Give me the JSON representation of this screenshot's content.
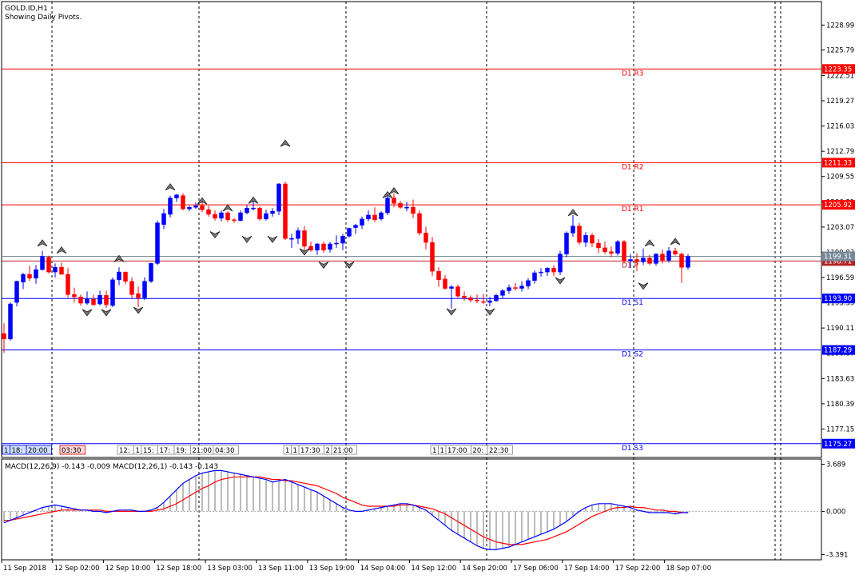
{
  "header": {
    "symbol": "GOLD.ID,H1",
    "subtitle": "Showing Daily Pivots."
  },
  "colors": {
    "bull": "#0000ff",
    "bear": "#ff0000",
    "resistance": "#ff0000",
    "support": "#0000ff",
    "pivot": "#b22222",
    "macd_main": "#0000ff",
    "macd_signal": "#ff0000",
    "grid": "#000000"
  },
  "chart_data": [
    {
      "type": "candlestick",
      "title": "GOLD.ID,H1",
      "ylim": [
        1173.5,
        1232.0
      ],
      "y_ticks": [
        1228.99,
        1225.79,
        1222.51,
        1219.27,
        1216.03,
        1212.79,
        1209.55,
        1206.31,
        1203.07,
        1199.83,
        1196.59,
        1193.35,
        1190.11,
        1186.87,
        1183.63,
        1180.39,
        1177.15
      ],
      "x_tick_labels": [
        "11 Sep 2018",
        "12 Sep 02:00",
        "12 Sep 10:00",
        "12 Sep 18:00",
        "13 Sep 03:00",
        "13 Sep 11:00",
        "13 Sep 19:00",
        "14 Sep 04:00",
        "14 Sep 12:00",
        "14 Sep 20:00",
        "17 Sep 06:00",
        "17 Sep 14:00",
        "17 Sep 22:00",
        "18 Sep 07:00"
      ],
      "day_separators": [
        7,
        30,
        53,
        75,
        98,
        121
      ],
      "pivot_levels": [
        {
          "name": "R3",
          "label": "D1 R3",
          "value": 1223.35,
          "tag": "1223.35",
          "kind": "resistance"
        },
        {
          "name": "R2",
          "label": "D1 R2",
          "value": 1211.33,
          "tag": "1211.33",
          "kind": "resistance"
        },
        {
          "name": "R1",
          "label": "D1 R1",
          "value": 1205.92,
          "tag": "1205.92",
          "kind": "resistance"
        },
        {
          "name": "P",
          "label": "D1 P",
          "value": 1198.71,
          "tag": "1198.71",
          "kind": "pivot"
        },
        {
          "name": "S1",
          "label": "D1 S1",
          "value": 1193.9,
          "tag": "1193.90",
          "kind": "support"
        },
        {
          "name": "S2",
          "label": "D1 S2",
          "value": 1187.29,
          "tag": "1187.29",
          "kind": "support"
        },
        {
          "name": "S3",
          "label": "D1 S3",
          "value": 1175.27,
          "tag": "1175.27",
          "kind": "support"
        }
      ],
      "bid_price": 1199.31,
      "bid_tag": "1199.31",
      "time_tag_groups": [
        {
          "slot": 0,
          "labels": [
            "1",
            "18:",
            "20:00"
          ],
          "style": "blue"
        },
        {
          "slot": 9,
          "labels": [
            "03:30"
          ],
          "style": "red"
        },
        {
          "slot": 18,
          "labels": [
            "12:",
            "1",
            "15:",
            "17:",
            "19:",
            "21:00"
          ],
          "style": "gray"
        },
        {
          "slot": 33,
          "labels": [
            "04:30"
          ],
          "style": "gray"
        },
        {
          "slot": 44,
          "labels": [
            "1",
            "1",
            "17:30",
            "2",
            "21:00"
          ],
          "style": "gray"
        },
        {
          "slot": 67,
          "labels": [
            "1",
            "1",
            "17:00",
            "20:",
            "22:30"
          ],
          "style": "gray"
        }
      ],
      "fractals_up": [
        [
          6,
          1200.5
        ],
        [
          9,
          1199.6
        ],
        [
          18,
          1198.5
        ],
        [
          26,
          1207.7
        ],
        [
          31,
          1205.9
        ],
        [
          35,
          1205.0
        ],
        [
          39,
          1206.0
        ],
        [
          44,
          1213.3
        ],
        [
          60,
          1206.7
        ],
        [
          61,
          1207.2
        ],
        [
          89,
          1204.4
        ],
        [
          101,
          1200.5
        ],
        [
          105,
          1200.7
        ]
      ],
      "fractals_down": [
        [
          13,
          1192.6
        ],
        [
          16,
          1192.6
        ],
        [
          21,
          1192.9
        ],
        [
          33,
          1202.6
        ],
        [
          38,
          1202.0
        ],
        [
          42,
          1202.0
        ],
        [
          47,
          1200.4
        ],
        [
          50,
          1198.7
        ],
        [
          54,
          1198.7
        ],
        [
          70,
          1192.7
        ],
        [
          76,
          1192.7
        ],
        [
          87,
          1196.7
        ],
        [
          100,
          1196.0
        ]
      ],
      "candles": [
        [
          1189.4,
          1190.7,
          1186.9,
          1188.7
        ],
        [
          1188.7,
          1193.4,
          1188.5,
          1193.2
        ],
        [
          1193.4,
          1196.2,
          1192.9,
          1196.1
        ],
        [
          1196.0,
          1197.2,
          1195.1,
          1197.0
        ],
        [
          1197.0,
          1198.1,
          1196.1,
          1196.5
        ],
        [
          1196.5,
          1198.2,
          1195.8,
          1197.6
        ],
        [
          1197.6,
          1200.0,
          1197.5,
          1199.3
        ],
        [
          1199.2,
          1199.4,
          1197.1,
          1197.3
        ],
        [
          1197.3,
          1198.4,
          1196.6,
          1197.9
        ],
        [
          1197.9,
          1198.5,
          1197.0,
          1197.0
        ],
        [
          1197.0,
          1197.8,
          1194.0,
          1194.4
        ],
        [
          1194.4,
          1195.3,
          1193.4,
          1194.1
        ],
        [
          1194.1,
          1194.4,
          1193.0,
          1193.3
        ],
        [
          1193.3,
          1194.8,
          1193.1,
          1193.8
        ],
        [
          1193.8,
          1194.4,
          1193.0,
          1193.1
        ],
        [
          1193.2,
          1194.9,
          1193.0,
          1194.3
        ],
        [
          1194.3,
          1194.9,
          1192.7,
          1193.1
        ],
        [
          1193.0,
          1196.6,
          1192.8,
          1196.3
        ],
        [
          1196.3,
          1197.9,
          1195.6,
          1197.3
        ],
        [
          1197.3,
          1197.3,
          1195.7,
          1196.1
        ],
        [
          1196.1,
          1196.6,
          1193.9,
          1194.4
        ],
        [
          1194.5,
          1195.4,
          1192.8,
          1194.0
        ],
        [
          1194.0,
          1196.6,
          1193.7,
          1196.1
        ],
        [
          1196.1,
          1198.5,
          1195.9,
          1198.4
        ],
        [
          1198.4,
          1203.9,
          1198.2,
          1203.6
        ],
        [
          1203.4,
          1205.4,
          1202.8,
          1204.8
        ],
        [
          1204.7,
          1207.1,
          1204.3,
          1206.8
        ],
        [
          1206.8,
          1207.3,
          1206.3,
          1207.2
        ],
        [
          1207.1,
          1207.4,
          1205.2,
          1205.4
        ],
        [
          1205.4,
          1205.8,
          1205.1,
          1205.6
        ],
        [
          1205.6,
          1206.2,
          1205.4,
          1205.8
        ],
        [
          1205.8,
          1206.3,
          1205.0,
          1205.3
        ],
        [
          1205.3,
          1205.8,
          1204.4,
          1204.7
        ],
        [
          1204.7,
          1205.2,
          1203.9,
          1204.2
        ],
        [
          1204.2,
          1205.2,
          1203.8,
          1204.9
        ],
        [
          1204.9,
          1205.1,
          1203.7,
          1204.0
        ],
        [
          1204.0,
          1204.2,
          1203.6,
          1203.9
        ],
        [
          1203.9,
          1205.2,
          1203.8,
          1204.9
        ],
        [
          1204.9,
          1205.9,
          1204.7,
          1205.5
        ],
        [
          1205.5,
          1206.4,
          1205.2,
          1205.5
        ],
        [
          1205.5,
          1205.7,
          1203.9,
          1204.1
        ],
        [
          1204.1,
          1205.3,
          1203.9,
          1204.8
        ],
        [
          1204.8,
          1205.5,
          1204.4,
          1205.1
        ],
        [
          1205.1,
          1208.7,
          1204.6,
          1208.6
        ],
        [
          1208.6,
          1208.9,
          1201.4,
          1201.6
        ],
        [
          1201.6,
          1202.2,
          1200.4,
          1201.6
        ],
        [
          1201.6,
          1203.0,
          1200.9,
          1202.6
        ],
        [
          1202.6,
          1203.2,
          1200.1,
          1200.6
        ],
        [
          1200.6,
          1201.2,
          1199.9,
          1200.1
        ],
        [
          1200.1,
          1201.0,
          1199.5,
          1200.9
        ],
        [
          1200.9,
          1201.2,
          1199.8,
          1200.1
        ],
        [
          1200.2,
          1201.2,
          1199.8,
          1200.9
        ],
        [
          1200.9,
          1202.0,
          1200.4,
          1201.0
        ],
        [
          1201.0,
          1202.2,
          1200.1,
          1201.9
        ],
        [
          1201.9,
          1203.0,
          1201.7,
          1202.9
        ],
        [
          1203.0,
          1203.5,
          1202.2,
          1203.3
        ],
        [
          1203.3,
          1204.4,
          1202.8,
          1204.1
        ],
        [
          1204.1,
          1205.2,
          1203.8,
          1204.6
        ],
        [
          1204.6,
          1205.6,
          1203.7,
          1204.0
        ],
        [
          1204.1,
          1205.1,
          1203.9,
          1204.9
        ],
        [
          1204.9,
          1207.2,
          1204.6,
          1206.8
        ],
        [
          1206.8,
          1207.4,
          1205.6,
          1206.1
        ],
        [
          1206.1,
          1206.4,
          1205.4,
          1205.6
        ],
        [
          1205.6,
          1206.3,
          1205.1,
          1205.6
        ],
        [
          1205.6,
          1206.6,
          1204.2,
          1204.8
        ],
        [
          1204.8,
          1205.2,
          1202.0,
          1202.3
        ],
        [
          1202.3,
          1203.1,
          1200.2,
          1201.1
        ],
        [
          1201.1,
          1201.8,
          1196.8,
          1197.4
        ],
        [
          1197.4,
          1197.9,
          1195.4,
          1196.3
        ],
        [
          1196.4,
          1196.9,
          1195.0,
          1195.2
        ],
        [
          1195.2,
          1195.6,
          1192.6,
          1195.4
        ],
        [
          1195.4,
          1195.7,
          1194.0,
          1194.2
        ],
        [
          1194.2,
          1194.8,
          1193.6,
          1194.0
        ],
        [
          1194.0,
          1194.3,
          1193.4,
          1193.7
        ],
        [
          1193.7,
          1194.4,
          1193.3,
          1193.6
        ],
        [
          1193.5,
          1194.5,
          1193.2,
          1193.4
        ],
        [
          1193.4,
          1194.1,
          1192.9,
          1193.6
        ],
        [
          1193.6,
          1194.5,
          1193.5,
          1194.3
        ],
        [
          1194.3,
          1195.1,
          1193.9,
          1194.9
        ],
        [
          1194.9,
          1195.7,
          1194.5,
          1195.3
        ],
        [
          1195.3,
          1195.9,
          1194.9,
          1195.2
        ],
        [
          1195.2,
          1196.1,
          1194.8,
          1195.5
        ],
        [
          1195.5,
          1196.5,
          1195.1,
          1196.2
        ],
        [
          1196.2,
          1197.5,
          1195.8,
          1197.2
        ],
        [
          1197.2,
          1197.8,
          1196.7,
          1197.3
        ],
        [
          1197.3,
          1197.9,
          1196.8,
          1197.8
        ],
        [
          1197.8,
          1198.2,
          1196.8,
          1197.3
        ],
        [
          1197.3,
          1200.0,
          1196.9,
          1199.6
        ],
        [
          1199.6,
          1202.5,
          1199.2,
          1202.3
        ],
        [
          1202.3,
          1204.6,
          1201.8,
          1203.2
        ],
        [
          1203.2,
          1203.6,
          1200.8,
          1201.1
        ],
        [
          1201.1,
          1202.4,
          1200.5,
          1202.0
        ],
        [
          1202.0,
          1202.3,
          1200.5,
          1201.0
        ],
        [
          1201.0,
          1201.5,
          1199.7,
          1200.4
        ],
        [
          1200.4,
          1201.2,
          1199.6,
          1199.9
        ],
        [
          1199.9,
          1200.6,
          1199.2,
          1199.7
        ],
        [
          1199.7,
          1201.4,
          1199.4,
          1201.2
        ],
        [
          1201.2,
          1201.4,
          1198.4,
          1198.7
        ],
        [
          1198.7,
          1199.6,
          1197.8,
          1198.9
        ],
        [
          1198.9,
          1199.7,
          1197.4,
          1198.6
        ],
        [
          1198.6,
          1200.3,
          1198.2,
          1199.1
        ],
        [
          1199.1,
          1199.5,
          1198.2,
          1198.4
        ],
        [
          1198.4,
          1199.7,
          1198.1,
          1199.6
        ],
        [
          1199.6,
          1200.2,
          1198.4,
          1198.8
        ],
        [
          1198.8,
          1200.5,
          1198.5,
          1200.0
        ],
        [
          1200.0,
          1200.4,
          1199.4,
          1199.6
        ],
        [
          1199.6,
          1199.8,
          1195.9,
          1197.9
        ],
        [
          1197.9,
          1199.6,
          1197.6,
          1199.3
        ]
      ]
    },
    {
      "type": "line",
      "title": "MACD(12,26,9) -0.143 -0.009 MACD(12,26,1) -0.143 -0.143",
      "ylim": [
        -3.8,
        4.1
      ],
      "y_ticks": [
        3.689,
        0.0,
        -3.391
      ],
      "y_tick_labels": [
        "3.689",
        "0.000",
        "-3.391"
      ],
      "series": [
        {
          "name": "MACD",
          "values": [
            -0.9,
            -0.7,
            -0.5,
            -0.3,
            -0.1,
            0.1,
            0.3,
            0.4,
            0.5,
            0.4,
            0.3,
            0.2,
            0.1,
            0.1,
            0.0,
            0.0,
            -0.1,
            0.0,
            0.1,
            0.1,
            0.1,
            0.0,
            0.0,
            0.1,
            0.3,
            0.7,
            1.2,
            1.7,
            2.2,
            2.5,
            2.8,
            3.0,
            3.1,
            3.2,
            3.2,
            3.1,
            3.0,
            2.9,
            2.8,
            2.7,
            2.6,
            2.5,
            2.3,
            2.4,
            2.5,
            2.3,
            2.1,
            1.9,
            1.7,
            1.5,
            1.2,
            0.9,
            0.6,
            0.3,
            0.1,
            0.0,
            0.0,
            0.1,
            0.2,
            0.3,
            0.4,
            0.5,
            0.6,
            0.6,
            0.5,
            0.3,
            0.1,
            -0.3,
            -0.7,
            -1.1,
            -1.5,
            -1.8,
            -2.1,
            -2.4,
            -2.7,
            -2.9,
            -3.0,
            -3.0,
            -2.9,
            -2.8,
            -2.6,
            -2.4,
            -2.2,
            -2.0,
            -1.8,
            -1.6,
            -1.4,
            -1.1,
            -0.8,
            -0.4,
            0.0,
            0.3,
            0.5,
            0.6,
            0.6,
            0.6,
            0.5,
            0.4,
            0.3,
            0.1,
            0.0,
            -0.1,
            -0.1,
            -0.1,
            -0.1,
            -0.2,
            -0.1,
            -0.1
          ]
        },
        {
          "name": "Signal",
          "values": [
            -0.7,
            -0.7,
            -0.6,
            -0.5,
            -0.4,
            -0.3,
            -0.2,
            -0.1,
            0.0,
            0.1,
            0.1,
            0.1,
            0.1,
            0.1,
            0.1,
            0.1,
            0.0,
            0.0,
            0.0,
            0.0,
            0.0,
            0.0,
            0.0,
            0.0,
            0.1,
            0.2,
            0.4,
            0.6,
            0.9,
            1.2,
            1.5,
            1.8,
            2.0,
            2.3,
            2.5,
            2.6,
            2.7,
            2.7,
            2.7,
            2.7,
            2.7,
            2.6,
            2.5,
            2.5,
            2.4,
            2.4,
            2.3,
            2.2,
            2.1,
            2.0,
            1.8,
            1.6,
            1.4,
            1.1,
            0.9,
            0.7,
            0.5,
            0.4,
            0.4,
            0.4,
            0.4,
            0.4,
            0.5,
            0.5,
            0.5,
            0.4,
            0.3,
            0.2,
            0.0,
            -0.2,
            -0.5,
            -0.8,
            -1.1,
            -1.4,
            -1.7,
            -2.0,
            -2.2,
            -2.4,
            -2.5,
            -2.6,
            -2.6,
            -2.6,
            -2.5,
            -2.4,
            -2.3,
            -2.2,
            -2.0,
            -1.8,
            -1.6,
            -1.3,
            -1.0,
            -0.7,
            -0.4,
            -0.2,
            0.0,
            0.2,
            0.3,
            0.3,
            0.4,
            0.3,
            0.3,
            0.2,
            0.1,
            0.1,
            0.0,
            0.0,
            -0.1,
            -0.1
          ]
        }
      ]
    }
  ]
}
